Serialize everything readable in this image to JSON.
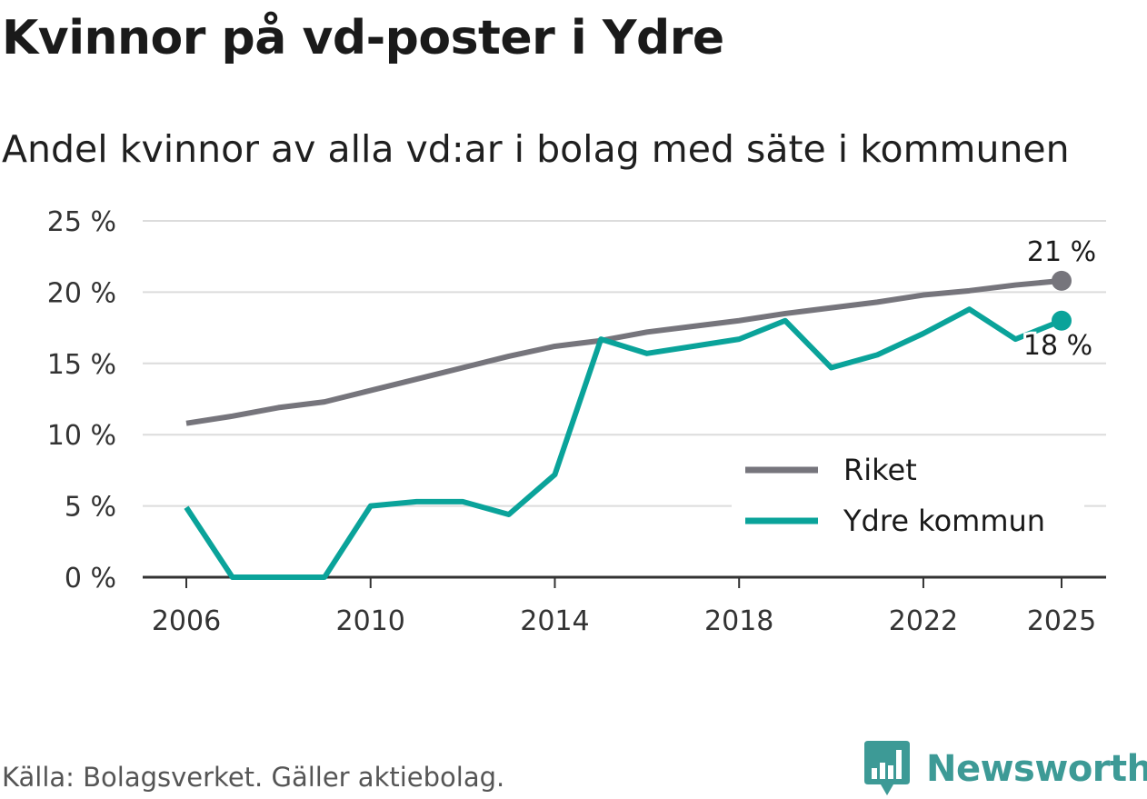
{
  "header": {
    "title": "Kvinnor på vd-poster i Ydre",
    "subtitle": "Andel kvinnor av alla vd:ar i bolag med säte i kommunen"
  },
  "footer": {
    "source": "Källa: Bolagsverket. Gäller aktiebolag.",
    "brand": "Newsworthy"
  },
  "colors": {
    "riket": "#76757c",
    "ydre": "#0aa39a",
    "brand": "#3d9a96",
    "grid": "#dcdcdc",
    "axis": "#333333"
  },
  "chart_data": {
    "type": "line",
    "title": "Kvinnor på vd-poster i Ydre",
    "subtitle": "Andel kvinnor av alla vd:ar i bolag med säte i kommunen",
    "xlabel": "",
    "ylabel": "",
    "xlim": [
      2006,
      2025
    ],
    "ylim": [
      0,
      25
    ],
    "x": [
      2006,
      2007,
      2008,
      2009,
      2010,
      2011,
      2012,
      2013,
      2014,
      2015,
      2016,
      2017,
      2018,
      2019,
      2020,
      2021,
      2022,
      2023,
      2024,
      2025
    ],
    "xticks": [
      "2006",
      "2010",
      "2014",
      "2018",
      "2022",
      "2025"
    ],
    "xtick_values": [
      2006,
      2010,
      2014,
      2018,
      2022,
      2025
    ],
    "yticks": [
      "0 %",
      "5 %",
      "10 %",
      "15 %",
      "20 %",
      "25 %"
    ],
    "ytick_values": [
      0,
      5,
      10,
      15,
      20,
      25
    ],
    "grid": true,
    "legend_position": "bottom-right",
    "series": [
      {
        "name": "Riket",
        "color": "#76757c",
        "values": [
          10.8,
          11.3,
          11.9,
          12.3,
          13.1,
          13.9,
          14.7,
          15.5,
          16.2,
          16.6,
          17.2,
          17.6,
          18.0,
          18.5,
          18.9,
          19.3,
          19.8,
          20.1,
          20.5,
          20.8
        ],
        "end_label": "21 %"
      },
      {
        "name": "Ydre kommun",
        "color": "#0aa39a",
        "values": [
          4.9,
          0.0,
          0.0,
          0.0,
          5.0,
          5.3,
          5.3,
          4.4,
          7.2,
          16.7,
          15.7,
          16.2,
          16.7,
          18.0,
          14.7,
          15.6,
          17.1,
          18.8,
          16.7,
          18.0
        ],
        "end_label": "18 %"
      }
    ]
  }
}
